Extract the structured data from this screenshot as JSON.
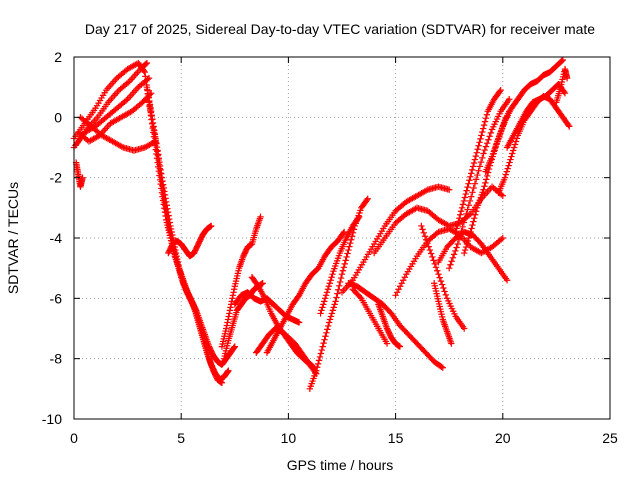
{
  "chart_data": {
    "type": "scatter",
    "title": "Day 217 of 2025, Sidereal Day-to-day VTEC variation (SDTVAR) for receiver mate",
    "xlabel": "GPS time / hours",
    "ylabel": "SDTVAR / TECUs",
    "xlim": [
      0,
      25
    ],
    "ylim": [
      -10,
      2
    ],
    "xticks": [
      "0",
      "5",
      "10",
      "15",
      "20",
      "25"
    ],
    "yticks": [
      "2",
      "0",
      "-2",
      "-4",
      "-6",
      "-8",
      "-10"
    ],
    "grid": true,
    "marker": "+",
    "series_color": "#ff0000",
    "series": [
      {
        "x": [
          0.0,
          0.5,
          1.0,
          1.5,
          2.0,
          2.5,
          3.0,
          3.3
        ],
        "y": [
          -0.7,
          -0.2,
          0.3,
          0.9,
          1.3,
          1.6,
          1.8,
          1.5
        ]
      },
      {
        "x": [
          0.1,
          0.6,
          1.1,
          1.6,
          2.1,
          2.6,
          3.1,
          3.4
        ],
        "y": [
          -0.9,
          -0.4,
          0.0,
          0.5,
          0.9,
          1.2,
          1.6,
          1.8
        ]
      },
      {
        "x": [
          0.0,
          0.5,
          1.0,
          1.5,
          2.0,
          2.5,
          3.0,
          3.5
        ],
        "y": [
          -1.0,
          -0.5,
          -0.3,
          0.0,
          0.3,
          0.6,
          1.0,
          1.3
        ]
      },
      {
        "x": [
          0.2,
          0.7,
          1.2,
          1.7,
          2.2,
          2.7,
          3.2,
          3.6
        ],
        "y": [
          -0.5,
          -0.8,
          -0.6,
          -0.2,
          0.0,
          0.2,
          0.5,
          0.8
        ]
      },
      {
        "x": [
          0.3,
          0.8,
          1.3,
          1.8,
          2.3,
          2.8,
          3.3,
          3.8
        ],
        "y": [
          0.0,
          -0.3,
          -0.6,
          -0.8,
          -1.0,
          -1.1,
          -1.0,
          -0.8
        ]
      },
      {
        "x": [
          0.1,
          0.2,
          0.3,
          0.4
        ],
        "y": [
          -1.5,
          -1.9,
          -2.3,
          -2.0
        ]
      },
      {
        "x": [
          3.3,
          3.5,
          3.7,
          3.9,
          4.1,
          4.3,
          4.5,
          4.7,
          4.9,
          5.1,
          5.3,
          5.5,
          5.7,
          5.9,
          6.1,
          6.3,
          6.5,
          6.7,
          6.9
        ],
        "y": [
          1.5,
          0.5,
          -0.5,
          -1.5,
          -2.5,
          -3.4,
          -4.0,
          -4.6,
          -5.0,
          -5.4,
          -5.8,
          -6.1,
          -6.5,
          -7.0,
          -7.5,
          -8.0,
          -8.4,
          -8.7,
          -8.8
        ]
      },
      {
        "x": [
          3.4,
          3.6,
          3.8,
          4.0,
          4.2,
          4.4,
          4.6,
          4.8,
          5.0,
          5.2,
          5.4,
          5.6,
          5.8,
          6.0,
          6.2,
          6.4,
          6.6,
          6.8,
          7.0,
          7.2
        ],
        "y": [
          1.0,
          0.2,
          -0.7,
          -1.7,
          -2.7,
          -3.5,
          -4.2,
          -4.8,
          -5.3,
          -5.7,
          -6.0,
          -6.3,
          -6.8,
          -7.3,
          -7.8,
          -8.2,
          -8.5,
          -8.7,
          -8.6,
          -8.4
        ]
      },
      {
        "x": [
          3.5,
          3.7,
          3.9,
          4.1,
          4.3,
          4.5,
          4.7,
          4.9,
          5.1,
          5.3,
          5.5,
          5.7,
          5.9,
          6.1,
          6.3,
          6.5,
          6.7,
          6.9,
          7.1,
          7.3,
          7.5
        ],
        "y": [
          0.5,
          -0.3,
          -1.1,
          -2.0,
          -2.8,
          -3.6,
          -4.3,
          -5.0,
          -5.5,
          -5.8,
          -6.1,
          -6.4,
          -6.8,
          -7.2,
          -7.6,
          -7.9,
          -8.1,
          -8.2,
          -8.0,
          -7.8,
          -7.6
        ]
      },
      {
        "x": [
          4.4,
          4.6,
          4.8,
          5.0,
          5.2,
          5.4,
          5.6,
          5.8,
          6.0,
          6.2,
          6.4
        ],
        "y": [
          -4.5,
          -4.2,
          -4.1,
          -4.2,
          -4.4,
          -4.6,
          -4.5,
          -4.2,
          -3.9,
          -3.7,
          -3.6
        ]
      },
      {
        "x": [
          6.9,
          7.1,
          7.3,
          7.5,
          7.7,
          7.9,
          8.1,
          8.3,
          8.5,
          8.7
        ],
        "y": [
          -7.6,
          -7.0,
          -6.3,
          -5.6,
          -5.0,
          -4.6,
          -4.3,
          -4.2,
          -3.7,
          -3.3
        ]
      },
      {
        "x": [
          7.0,
          7.2,
          7.4,
          7.6,
          7.8,
          8.0,
          8.2,
          8.4,
          8.6,
          8.8
        ],
        "y": [
          -8.0,
          -7.4,
          -6.9,
          -6.4,
          -6.2,
          -6.0,
          -5.9,
          -5.7,
          -5.6,
          -5.5
        ]
      },
      {
        "x": [
          7.5,
          7.8,
          8.1,
          8.4,
          8.7,
          9.0,
          9.3,
          9.6,
          9.9,
          10.2,
          10.5
        ],
        "y": [
          -6.2,
          -5.9,
          -5.8,
          -6.0,
          -6.1,
          -6.0,
          -6.2,
          -6.4,
          -6.6,
          -6.7,
          -6.8
        ]
      },
      {
        "x": [
          8.3,
          8.6,
          8.9,
          9.2,
          9.5,
          9.8,
          10.1,
          10.4,
          10.7,
          11.0,
          11.3
        ],
        "y": [
          -5.3,
          -5.6,
          -6.0,
          -6.5,
          -6.9,
          -7.2,
          -7.5,
          -7.8,
          -8.0,
          -8.2,
          -8.5
        ]
      },
      {
        "x": [
          8.5,
          8.8,
          9.1,
          9.4,
          9.7,
          10.0,
          10.3,
          10.6,
          10.9,
          11.2
        ],
        "y": [
          -7.8,
          -7.5,
          -7.2,
          -7.0,
          -7.1,
          -7.3,
          -7.5,
          -7.8,
          -8.1,
          -8.3
        ]
      },
      {
        "x": [
          9.0,
          9.3,
          9.6,
          9.9,
          10.2,
          10.5,
          10.8,
          11.1,
          11.4,
          11.7,
          12.0,
          12.3,
          12.6
        ],
        "y": [
          -7.8,
          -7.4,
          -7.0,
          -6.6,
          -6.2,
          -5.9,
          -5.5,
          -5.2,
          -5.0,
          -4.6,
          -4.3,
          -4.1,
          -3.8
        ]
      },
      {
        "x": [
          11.0,
          11.3,
          11.6,
          11.9,
          12.2,
          12.5,
          12.8,
          13.1,
          13.4,
          13.7
        ],
        "y": [
          -9.0,
          -8.4,
          -7.6,
          -6.8,
          -6.1,
          -5.2,
          -4.4,
          -3.6,
          -3.0,
          -2.7
        ]
      },
      {
        "x": [
          11.5,
          11.8,
          12.1,
          12.4,
          12.7,
          13.0,
          13.3
        ],
        "y": [
          -6.5,
          -5.8,
          -5.1,
          -4.5,
          -4.0,
          -3.6,
          -3.3
        ]
      },
      {
        "x": [
          12.5,
          13.0,
          13.5,
          14.0,
          14.5,
          15.0,
          15.5,
          16.0,
          16.5,
          17.0,
          17.5
        ],
        "y": [
          -5.8,
          -5.4,
          -4.8,
          -4.2,
          -3.6,
          -3.1,
          -2.8,
          -2.6,
          -2.4,
          -2.3,
          -2.4
        ]
      },
      {
        "x": [
          12.8,
          13.2,
          13.6,
          14.0,
          14.4,
          14.8,
          15.2,
          15.6,
          16.0,
          16.4,
          16.8,
          17.2
        ],
        "y": [
          -5.5,
          -5.6,
          -5.8,
          -6.0,
          -6.2,
          -6.5,
          -6.9,
          -7.2,
          -7.5,
          -7.8,
          -8.1,
          -8.3
        ]
      },
      {
        "x": [
          13.0,
          13.4,
          13.8,
          14.2,
          14.6
        ],
        "y": [
          -5.7,
          -6.0,
          -6.5,
          -7.0,
          -7.5
        ]
      },
      {
        "x": [
          14.0,
          14.5,
          15.0,
          15.5,
          16.0,
          16.5,
          17.0,
          17.5,
          18.0,
          18.5,
          19.0,
          19.5,
          20.0
        ],
        "y": [
          -4.5,
          -4.0,
          -3.5,
          -3.2,
          -3.0,
          -3.1,
          -3.4,
          -3.6,
          -3.5,
          -3.2,
          -2.7,
          -2.3,
          -2.6
        ]
      },
      {
        "x": [
          14.2,
          14.4,
          14.6,
          14.8,
          15.0,
          15.2
        ],
        "y": [
          -6.2,
          -6.6,
          -7.0,
          -7.3,
          -7.5,
          -7.6
        ]
      },
      {
        "x": [
          15.0,
          15.5,
          16.0,
          16.5,
          17.0,
          17.5,
          18.0,
          18.5,
          19.0,
          19.5,
          20.0
        ],
        "y": [
          -5.9,
          -5.2,
          -4.6,
          -4.1,
          -3.8,
          -3.7,
          -3.9,
          -4.3,
          -4.5,
          -4.3,
          -4.0
        ]
      },
      {
        "x": [
          16.2,
          16.6,
          17.0,
          17.4,
          17.8,
          18.2
        ],
        "y": [
          -3.6,
          -4.4,
          -5.2,
          -6.0,
          -6.6,
          -7.0
        ]
      },
      {
        "x": [
          16.8,
          17.0,
          17.2,
          17.4,
          17.6
        ],
        "y": [
          -5.5,
          -6.1,
          -6.7,
          -7.1,
          -7.5
        ]
      },
      {
        "x": [
          17.0,
          17.4,
          17.8,
          18.2,
          18.6,
          19.0,
          19.4,
          19.8,
          20.2
        ],
        "y": [
          -4.8,
          -4.3,
          -4.0,
          -3.8,
          -3.9,
          -4.2,
          -4.6,
          -5.0,
          -5.4
        ]
      },
      {
        "x": [
          17.5,
          17.9,
          18.3,
          18.7,
          19.1,
          19.5,
          19.9,
          20.3
        ],
        "y": [
          -5.0,
          -4.2,
          -3.2,
          -2.2,
          -1.2,
          -0.4,
          0.2,
          0.6
        ]
      },
      {
        "x": [
          17.8,
          18.1,
          18.4,
          18.7,
          19.0,
          19.3,
          19.6,
          19.9
        ],
        "y": [
          -3.8,
          -3.0,
          -2.2,
          -1.4,
          -0.6,
          0.2,
          0.6,
          0.9
        ]
      },
      {
        "x": [
          18.2,
          18.5,
          18.8,
          19.1,
          19.4,
          19.7,
          20.0,
          20.3
        ],
        "y": [
          -4.5,
          -3.8,
          -3.0,
          -2.4,
          -1.6,
          -0.9,
          -0.3,
          0.2
        ]
      },
      {
        "x": [
          19.2,
          19.5,
          19.8,
          20.1,
          20.4,
          20.7,
          21.0,
          21.3,
          21.6,
          21.9,
          22.2,
          22.5,
          22.8
        ],
        "y": [
          -1.8,
          -1.3,
          -0.7,
          -0.1,
          0.3,
          0.6,
          0.9,
          1.1,
          1.2,
          1.4,
          1.5,
          1.7,
          1.9
        ]
      },
      {
        "x": [
          19.8,
          20.1,
          20.4,
          20.7,
          21.0,
          21.3,
          21.6,
          21.9,
          22.2,
          22.5,
          22.8,
          23.1
        ],
        "y": [
          -2.5,
          -2.0,
          -1.3,
          -0.6,
          -0.1,
          0.2,
          0.5,
          0.7,
          0.6,
          0.3,
          0.0,
          -0.3
        ]
      },
      {
        "x": [
          20.2,
          20.5,
          20.8,
          21.1,
          21.4,
          21.7,
          22.0,
          22.3,
          22.6,
          22.9
        ],
        "y": [
          -1.0,
          -0.6,
          -0.2,
          0.2,
          0.5,
          0.6,
          0.7,
          0.9,
          1.1,
          0.8
        ]
      },
      {
        "x": [
          22.5,
          22.7,
          22.9,
          23.0
        ],
        "y": [
          0.5,
          1.0,
          1.6,
          1.3
        ]
      }
    ]
  }
}
